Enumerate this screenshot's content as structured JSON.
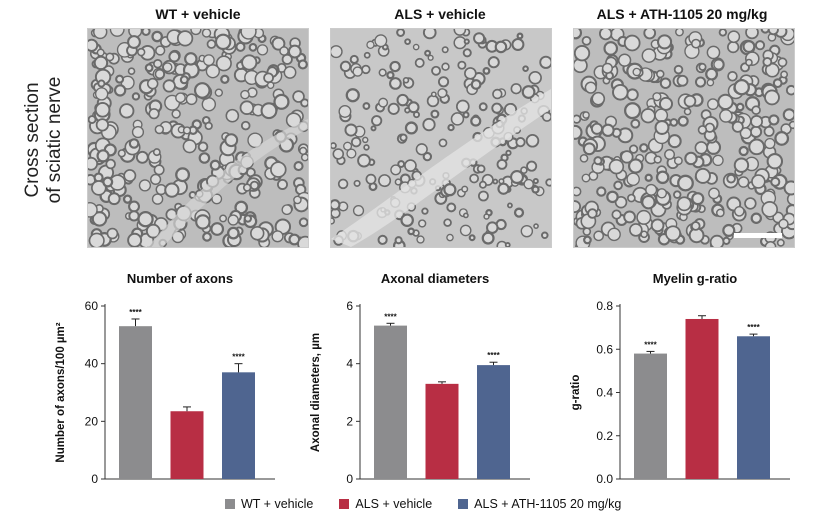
{
  "micrographs": {
    "row_label_line1": "Cross section",
    "row_label_line2": "of sciatic nerve",
    "panels": [
      {
        "title": "WT + vehicle",
        "texture": "dense"
      },
      {
        "title": "ALS + vehicle",
        "texture": "sparse"
      },
      {
        "title": "ALS + ATH-1105 20 mg/kg",
        "texture": "dense",
        "scale_bar": true
      }
    ]
  },
  "colors": {
    "wt": "#8c8c8e",
    "als": "#b82e44",
    "ath": "#4f6590"
  },
  "chart_data": [
    {
      "type": "bar",
      "title": "Number of axons",
      "ylabel": "Number of axons/100 µm²",
      "categories": [
        "WT + vehicle",
        "ALS + vehicle",
        "ALS + ATH-1105 20 mg/kg"
      ],
      "values": [
        53,
        23.5,
        37
      ],
      "errors": [
        2.5,
        1.5,
        3
      ],
      "significance": [
        "****",
        "",
        "****"
      ],
      "ylim": [
        0,
        60
      ],
      "yticks": [
        "0",
        "20",
        "40",
        "60"
      ],
      "grid": false
    },
    {
      "type": "bar",
      "title": "Axonal diameters",
      "ylabel": "Axonal diameters, µm",
      "categories": [
        "WT + vehicle",
        "ALS + vehicle",
        "ALS + ATH-1105 20 mg/kg"
      ],
      "values": [
        5.32,
        3.3,
        3.95
      ],
      "errors": [
        0.08,
        0.07,
        0.1
      ],
      "significance": [
        "****",
        "",
        "****"
      ],
      "ylim": [
        0,
        6
      ],
      "yticks": [
        "0",
        "2",
        "4",
        "6"
      ],
      "grid": false
    },
    {
      "type": "bar",
      "title": "Myelin g-ratio",
      "ylabel": "g-ratio",
      "categories": [
        "WT + vehicle",
        "ALS + vehicle",
        "ALS + ATH-1105 20 mg/kg"
      ],
      "values": [
        0.58,
        0.74,
        0.66
      ],
      "errors": [
        0.01,
        0.015,
        0.01
      ],
      "significance": [
        "****",
        "",
        "****"
      ],
      "ylim": [
        0,
        0.8
      ],
      "yticks": [
        "0.0",
        "0.2",
        "0.4",
        "0.6",
        "0.8"
      ],
      "grid": false
    }
  ],
  "legend": [
    {
      "label": "WT + vehicle",
      "color": "#8c8c8e"
    },
    {
      "label": "ALS + vehicle",
      "color": "#b82e44"
    },
    {
      "label": "ALS + ATH-1105 20 mg/kg",
      "color": "#4f6590"
    }
  ]
}
